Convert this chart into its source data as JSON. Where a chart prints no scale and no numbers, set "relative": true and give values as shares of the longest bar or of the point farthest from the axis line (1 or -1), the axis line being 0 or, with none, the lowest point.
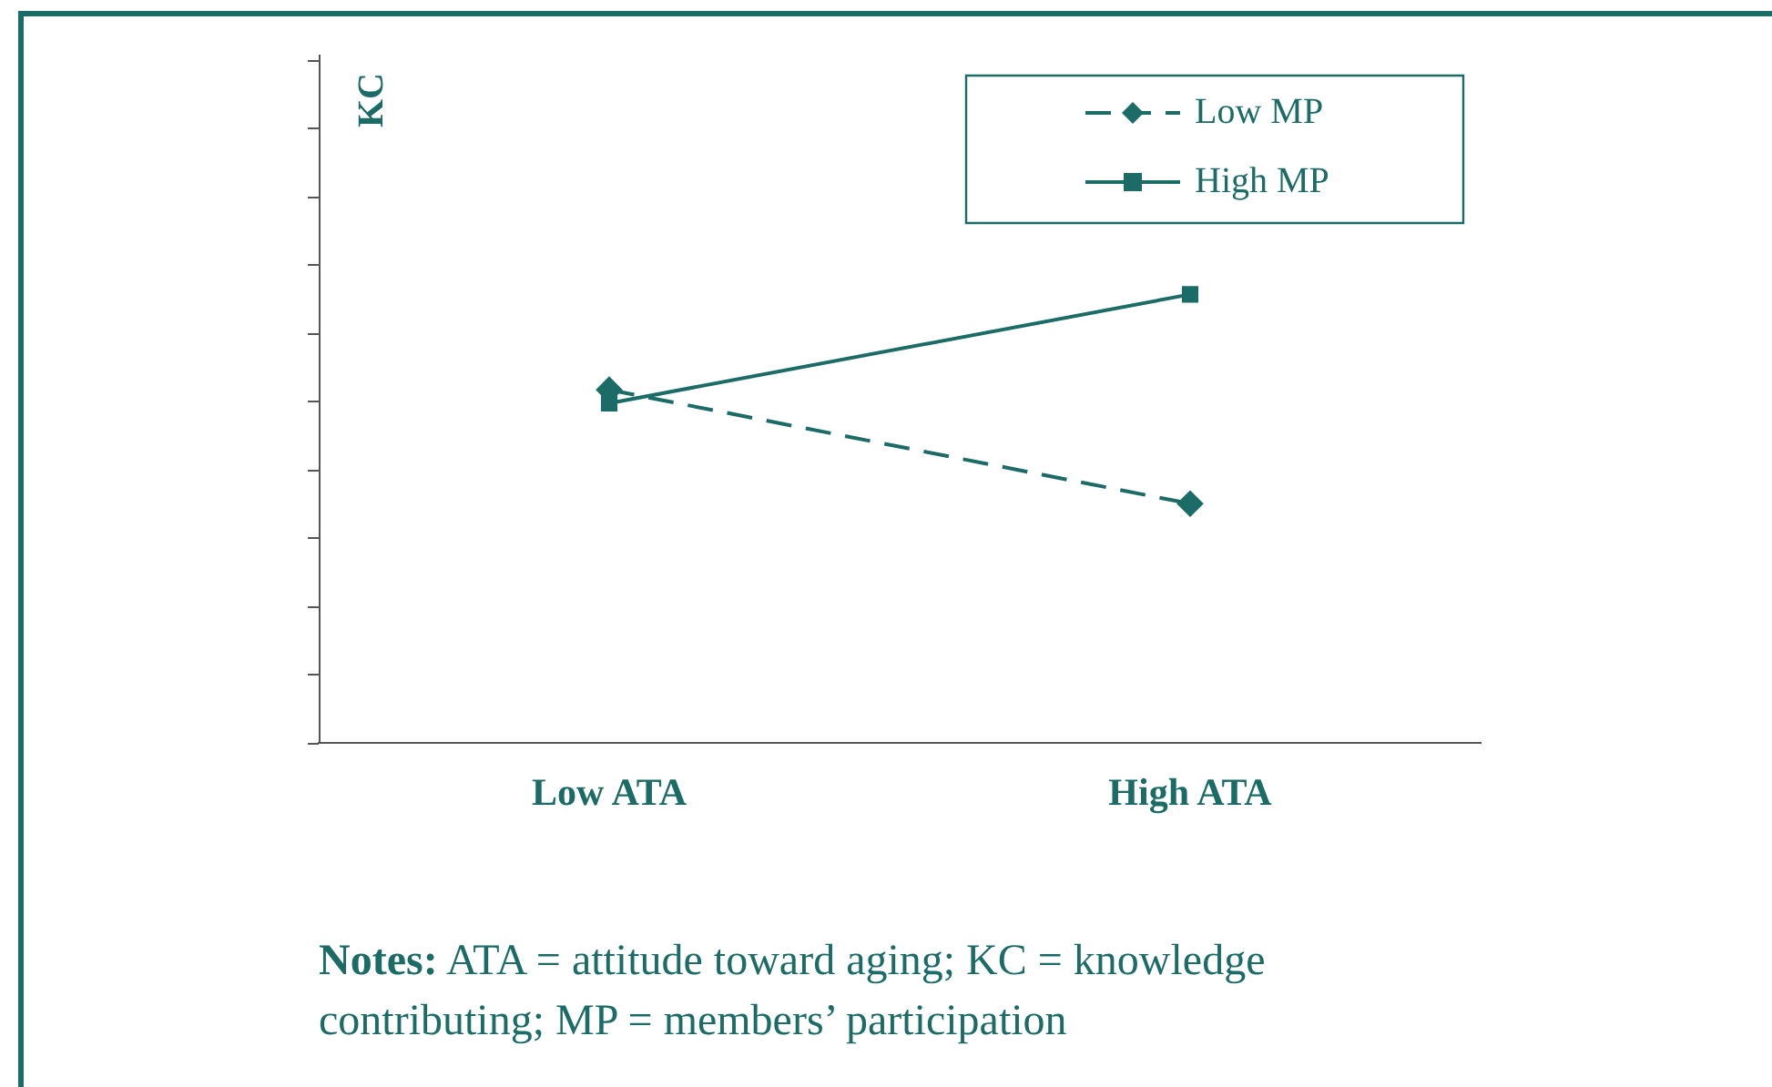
{
  "chart_data": {
    "type": "line",
    "ylabel": "KC",
    "categories": [
      "Low ATA",
      "High ATA"
    ],
    "relative": true,
    "series": [
      {
        "name": "Low MP",
        "color": "#1b6b67",
        "values": [
          0.787,
          0.533
        ],
        "marker": "diamond",
        "line_style": "dashed"
      },
      {
        "name": "High MP",
        "color": "#1b6b67",
        "values": [
          0.757,
          1
        ],
        "marker": "square",
        "line_style": "solid"
      }
    ],
    "legend": "top right",
    "grid": false,
    "annotations": [
      "Notes: ATA = attitude toward aging; KC = knowledge contributing; MP = members’ participation"
    ]
  }
}
